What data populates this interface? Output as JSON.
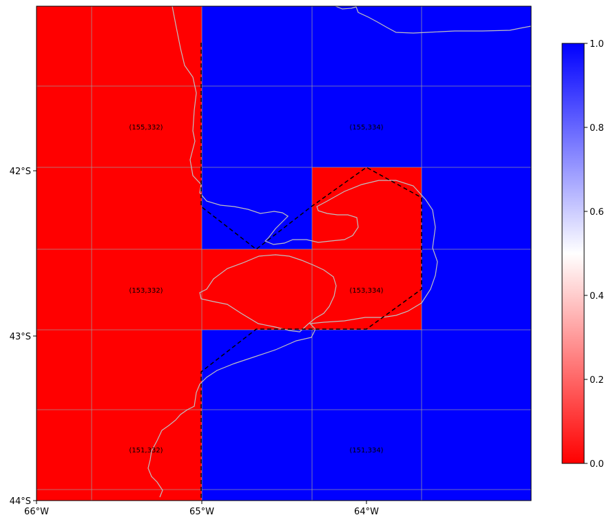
{
  "map": {
    "x_ticks": [
      "66°W",
      "65°W",
      "64°W"
    ],
    "y_ticks": [
      "42°S",
      "43°S",
      "44°S"
    ],
    "grid": true,
    "coastline_color": "#c0c0c0",
    "cells": [
      {
        "label": "(155,332)",
        "value": 0
      },
      {
        "label": "(155,334)",
        "value": 1
      },
      {
        "label": "(153,332)",
        "value": 0
      },
      {
        "label": "(153,334)",
        "value": 0
      },
      {
        "label": "(151,332)",
        "value": 0
      },
      {
        "label": "(151,334)",
        "value": 1
      }
    ],
    "sub_cell_value": 0,
    "colormap": [
      "#ff0000",
      "#ffffff",
      "#0000ff"
    ]
  },
  "colorbar": {
    "ticks": [
      "0.0",
      "0.2",
      "0.4",
      "0.6",
      "0.8",
      "1.0"
    ],
    "range": [
      0,
      1
    ]
  }
}
